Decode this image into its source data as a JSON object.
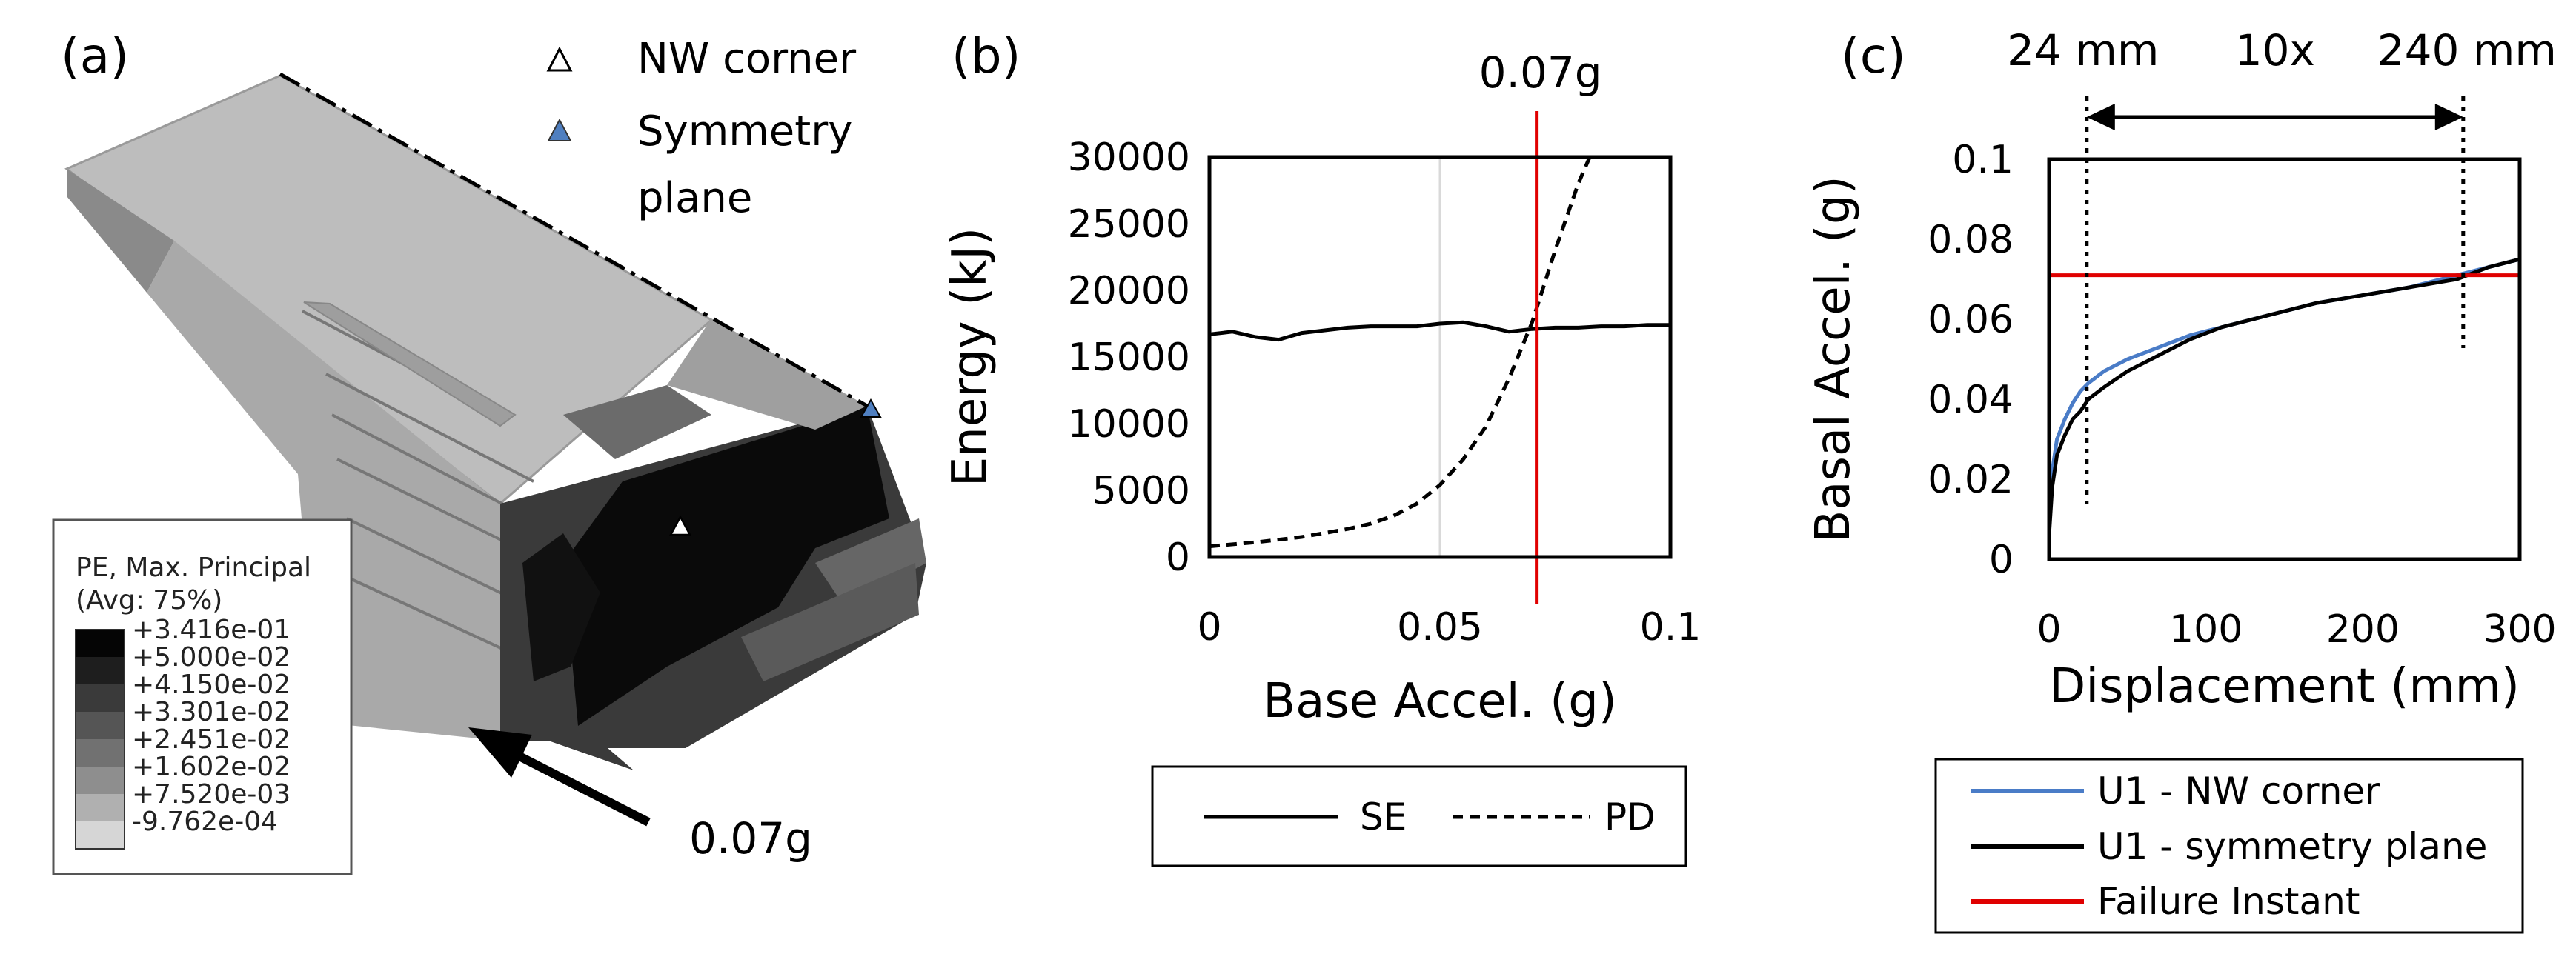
{
  "panels": {
    "a": {
      "label": "(a)",
      "markers": [
        {
          "symbol": "open-triangle",
          "text": "NW corner"
        },
        {
          "symbol": "filled-triangle",
          "text_line1": "Symmetry",
          "text_line2": "plane",
          "color": "#4f7fc0"
        }
      ],
      "colorbar": {
        "title_line1": "PE, Max. Principal",
        "title_line2": "(Avg: 75%)",
        "levels": [
          "+3.416e-01",
          "+5.000e-02",
          "+4.150e-02",
          "+3.301e-02",
          "+2.451e-02",
          "+1.602e-02",
          "+7.520e-03",
          "-9.762e-04"
        ],
        "colors": [
          "#050505",
          "#1e1e1e",
          "#3a3a3a",
          "#555555",
          "#717171",
          "#8e8e8e",
          "#b0b0b0",
          "#d6d6d6"
        ]
      },
      "arrow_label": "0.07g"
    },
    "b": {
      "label": "(b)"
    },
    "c": {
      "label": "(c)"
    }
  },
  "chart_data": [
    {
      "type": "line",
      "panel": "(b)",
      "xlabel": "Base Accel. (g)",
      "ylabel": "Energy (kJ)",
      "xlim": [
        0,
        0.1
      ],
      "ylim": [
        0,
        30000
      ],
      "xticks": [
        "0",
        "0.05",
        "0.1"
      ],
      "yticks": [
        "0",
        "5000",
        "10000",
        "15000",
        "20000",
        "25000",
        "30000"
      ],
      "grid": "vertical",
      "annotation": {
        "text": "0.07g",
        "x": 0.071,
        "color": "#e00000"
      },
      "legend": "bottom, boxed",
      "series": [
        {
          "name": "SE",
          "style": "solid",
          "color": "#000000",
          "x": [
            0,
            0.005,
            0.01,
            0.015,
            0.02,
            0.025,
            0.03,
            0.035,
            0.04,
            0.045,
            0.05,
            0.055,
            0.06,
            0.065,
            0.07,
            0.075,
            0.08,
            0.085,
            0.09,
            0.095,
            0.1
          ],
          "y": [
            16700,
            16900,
            16500,
            16300,
            16800,
            17000,
            17200,
            17300,
            17300,
            17300,
            17500,
            17600,
            17300,
            16900,
            17100,
            17200,
            17200,
            17300,
            17300,
            17400,
            17400
          ]
        },
        {
          "name": "PD",
          "style": "dashed",
          "color": "#000000",
          "x": [
            0,
            0.01,
            0.02,
            0.03,
            0.035,
            0.04,
            0.045,
            0.05,
            0.055,
            0.06,
            0.065,
            0.07,
            0.075,
            0.08,
            0.0825
          ],
          "y": [
            800,
            1100,
            1500,
            2100,
            2500,
            3100,
            4000,
            5400,
            7300,
            9800,
            13400,
            17600,
            23000,
            28000,
            30000
          ]
        }
      ]
    },
    {
      "type": "line",
      "panel": "(c)",
      "xlabel": "Displacement (mm)",
      "ylabel": "Basal Accel. (g)",
      "xlim": [
        0,
        300
      ],
      "ylim": [
        0,
        0.1
      ],
      "xticks": [
        "0",
        "100",
        "200",
        "300"
      ],
      "yticks": [
        "0",
        "0.02",
        "0.04",
        "0.06",
        "0.08",
        "0.1"
      ],
      "grid": "none",
      "annotations": [
        {
          "text": "24 mm",
          "x": 24
        },
        {
          "text": "10x"
        },
        {
          "text": "240 mm",
          "x": 264
        }
      ],
      "legend": "bottom, boxed",
      "series": [
        {
          "name": "U1 - NW corner",
          "color": "#4a7cc7",
          "x": [
            0,
            2,
            5,
            10,
            15,
            20,
            25,
            35,
            50,
            70,
            90,
            110,
            140,
            170,
            200,
            230,
            260,
            280,
            300
          ],
          "y": [
            0.008,
            0.022,
            0.03,
            0.035,
            0.039,
            0.042,
            0.044,
            0.047,
            0.05,
            0.053,
            0.056,
            0.058,
            0.061,
            0.064,
            0.066,
            0.068,
            0.071,
            0.073,
            0.075
          ]
        },
        {
          "name": "U1 - symmetry plane",
          "color": "#000000",
          "x": [
            0,
            2,
            5,
            10,
            15,
            20,
            25,
            35,
            50,
            70,
            90,
            110,
            140,
            170,
            200,
            230,
            260,
            280,
            300
          ],
          "y": [
            0.006,
            0.018,
            0.026,
            0.031,
            0.035,
            0.037,
            0.04,
            0.043,
            0.047,
            0.051,
            0.055,
            0.058,
            0.061,
            0.064,
            0.066,
            0.068,
            0.07,
            0.073,
            0.075
          ]
        },
        {
          "name": "Failure Instant",
          "color": "#e00000",
          "x": [
            0,
            300
          ],
          "y": [
            0.071,
            0.071
          ]
        }
      ]
    }
  ]
}
